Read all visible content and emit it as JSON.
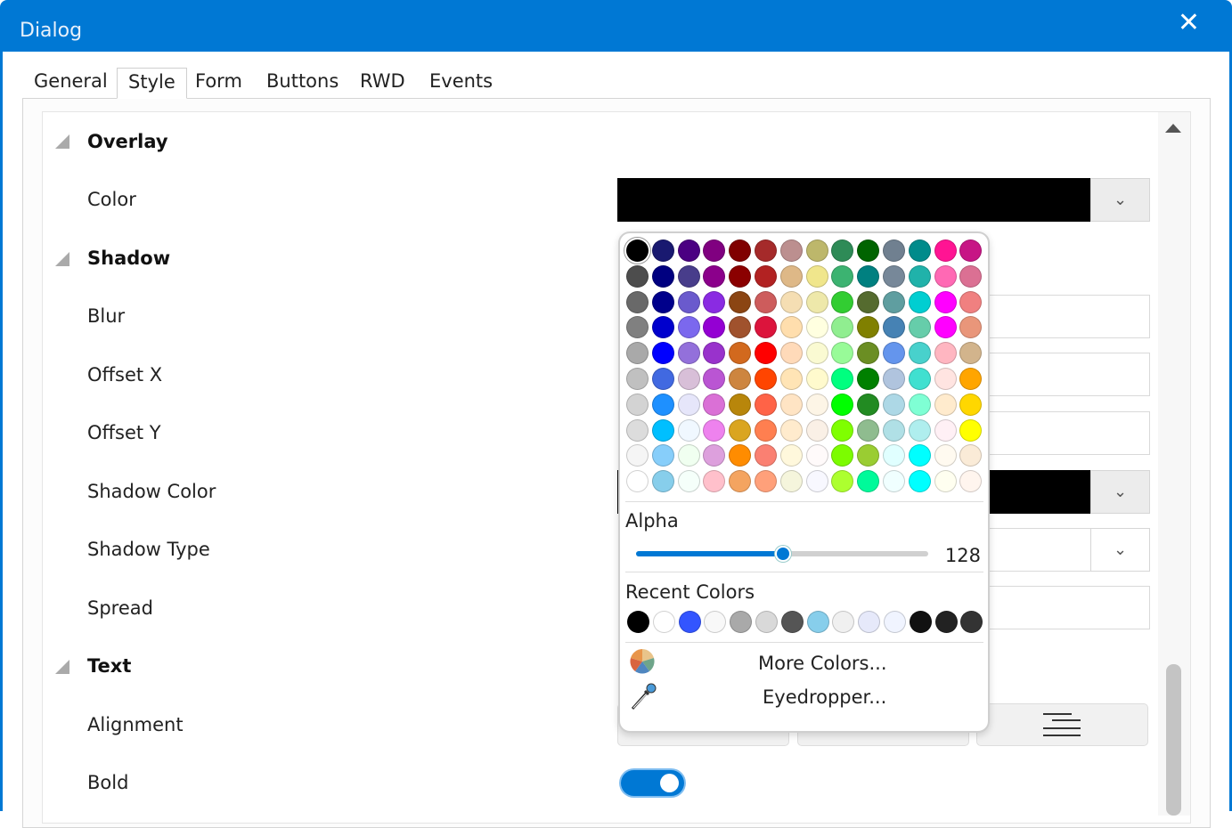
{
  "window": {
    "title": "Dialog",
    "close_icon": "close-icon"
  },
  "tabs": [
    {
      "label": "General"
    },
    {
      "label": "Style",
      "active": true
    },
    {
      "label": "Form"
    },
    {
      "label": "Buttons"
    },
    {
      "label": "RWD"
    },
    {
      "label": "Events"
    }
  ],
  "properties": {
    "overlay": {
      "section": "Overlay",
      "color_label": "Color",
      "color_value": "#000000"
    },
    "shadow": {
      "section": "Shadow",
      "blur": "Blur",
      "offset_x": "Offset X",
      "offset_y": "Offset Y",
      "shadow_color": "Shadow Color",
      "shadow_color_value": "#000000",
      "shadow_type": "Shadow Type",
      "spread": "Spread"
    },
    "text": {
      "section": "Text",
      "alignment": "Alignment",
      "alignment_options": [
        "left",
        "center",
        "right"
      ],
      "bold": "Bold",
      "bold_on": true
    }
  },
  "color_picker": {
    "selected": "#000000",
    "palette": [
      [
        "#000000",
        "#191970",
        "#4B0082",
        "#800080",
        "#800000",
        "#A52A2A",
        "#BC8F8F",
        "#BDB76B",
        "#2E8B57",
        "#006400",
        "#708090",
        "#008B8B",
        "#FF1493",
        "#C71585"
      ],
      [
        "#4D4D4D",
        "#000080",
        "#483D8B",
        "#8B008B",
        "#8B0000",
        "#B22222",
        "#DEB887",
        "#F0E68C",
        "#3CB371",
        "#008080",
        "#778899",
        "#20B2AA",
        "#FF69B4",
        "#DB7093"
      ],
      [
        "#696969",
        "#00008B",
        "#6A5ACD",
        "#8A2BE2",
        "#8B4513",
        "#CD5C5C",
        "#F5DEB3",
        "#EEE8AA",
        "#32CD32",
        "#556B2F",
        "#5F9EA0",
        "#00CED1",
        "#FF00FF",
        "#F08080"
      ],
      [
        "#808080",
        "#0000CD",
        "#7B68EE",
        "#9400D3",
        "#A0522D",
        "#DC143C",
        "#FFDEAD",
        "#FFFFE0",
        "#90EE90",
        "#808000",
        "#4682B4",
        "#66CDAA",
        "#FF00FF",
        "#E9967A"
      ],
      [
        "#A9A9A9",
        "#0000FF",
        "#9370DB",
        "#9932CC",
        "#D2691E",
        "#FF0000",
        "#FFDAB9",
        "#FAFAD2",
        "#98FB98",
        "#6B8E23",
        "#6495ED",
        "#48D1CC",
        "#FFB6C1",
        "#D2B48C"
      ],
      [
        "#C0C0C0",
        "#4169E1",
        "#D8BFD8",
        "#BA55D3",
        "#CD853F",
        "#FF4500",
        "#FFE4B5",
        "#FFFACD",
        "#00FF7F",
        "#008000",
        "#B0C4DE",
        "#40E0D0",
        "#FFE4E1",
        "#FFA500"
      ],
      [
        "#D3D3D3",
        "#1E90FF",
        "#E6E6FA",
        "#DA70D6",
        "#B8860B",
        "#FF6347",
        "#FFE4C4",
        "#FDF5E6",
        "#00FF00",
        "#228B22",
        "#ADD8E6",
        "#7FFFD4",
        "#FFEBCD",
        "#FFD700"
      ],
      [
        "#DCDCDC",
        "#00BFFF",
        "#F0F8FF",
        "#EE82EE",
        "#DAA520",
        "#FF7F50",
        "#FFEBCD",
        "#FAF0E6",
        "#7FFF00",
        "#8FBC8F",
        "#B0E0E6",
        "#AFEEEE",
        "#FFF0F5",
        "#FFFF00"
      ],
      [
        "#F5F5F5",
        "#87CEFA",
        "#F0FFF0",
        "#DDA0DD",
        "#FF8C00",
        "#FA8072",
        "#FFF8DC",
        "#FFFAFA",
        "#7CFC00",
        "#9ACD32",
        "#E0FFFF",
        "#00FFFF",
        "#FFFAF0",
        "#FAEBD7"
      ],
      [
        "#FFFFFF",
        "#87CEEB",
        "#F5FFFA",
        "#FFC0CB",
        "#F4A460",
        "#FFA07A",
        "#F5F5DC",
        "#F8F8FF",
        "#ADFF2F",
        "#00FA9A",
        "#F0FFFF",
        "#00FFFF",
        "#FFFFF0",
        "#FFF5EE"
      ]
    ],
    "alpha_label": "Alpha",
    "alpha_value": "128",
    "alpha_max": 255,
    "recent_label": "Recent Colors",
    "recent": [
      "#000000",
      "#FFFFFF",
      "#3355FF",
      "#F8F8F8",
      "#A9A9A9",
      "#D9D9D9",
      "#555555",
      "#87CEEB",
      "#F0F0F0",
      "#E6E9FA",
      "#F0F4FF",
      "#111111",
      "#222222",
      "#333333"
    ],
    "more_colors": "More Colors...",
    "eyedropper": "Eyedropper...",
    "accent": "#0078D4"
  }
}
